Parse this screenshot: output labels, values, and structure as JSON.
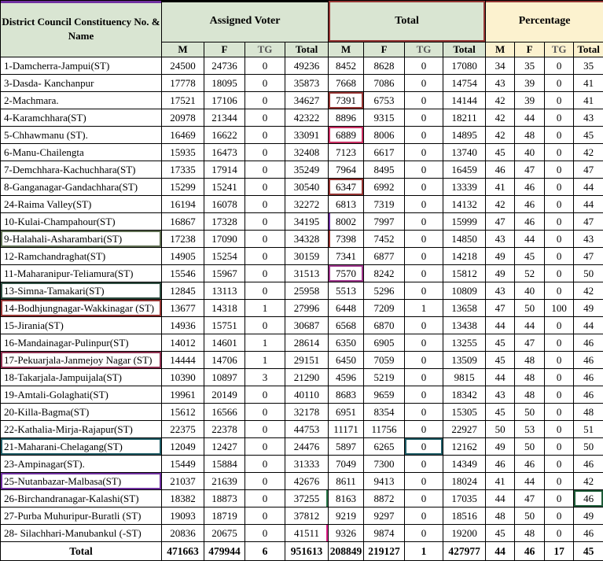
{
  "colors": {
    "header_green": "#d9e5d2",
    "header_cream": "#fcf2cf",
    "accent_dark_red": "#963634",
    "accent_purple": "#7030a0",
    "grid": "#000000"
  },
  "chart_data": {
    "type": "table",
    "name_header": "District Council Constituency No. & Name",
    "groups": [
      {
        "label": "Assigned Voter"
      },
      {
        "label": "Total"
      },
      {
        "label": "Percentage"
      }
    ],
    "sub_headers": [
      "M",
      "F",
      "TG",
      "Total"
    ],
    "total_label": "Total",
    "rows": [
      {
        "name": "1-Damcherra-Jampui(ST)",
        "values": [
          24500,
          24736,
          0,
          49236,
          8452,
          8628,
          0,
          17080,
          34,
          35,
          0,
          35
        ]
      },
      {
        "name": "3-Dasda- Kanchanpur",
        "values": [
          17778,
          18095,
          0,
          35873,
          7668,
          7086,
          0,
          14754,
          43,
          39,
          0,
          41
        ]
      },
      {
        "name": "2-Machmara.",
        "values": [
          17521,
          17106,
          0,
          34627,
          7391,
          6753,
          0,
          14144,
          42,
          39,
          0,
          41
        ]
      },
      {
        "name": "4-Karamchhara(ST)",
        "values": [
          20978,
          21344,
          0,
          42322,
          8896,
          9315,
          0,
          18211,
          42,
          44,
          0,
          43
        ]
      },
      {
        "name": "5-Chhawmanu (ST).",
        "values": [
          16469,
          16622,
          0,
          33091,
          6889,
          8006,
          0,
          14895,
          42,
          48,
          0,
          45
        ]
      },
      {
        "name": "6-Manu-Chailengta",
        "values": [
          15935,
          16473,
          0,
          32408,
          7123,
          6617,
          0,
          13740,
          45,
          40,
          0,
          42
        ]
      },
      {
        "name": "7-Demchhara-Kachuchhara(ST)",
        "values": [
          17335,
          17914,
          0,
          35249,
          7964,
          8495,
          0,
          16459,
          46,
          47,
          0,
          47
        ]
      },
      {
        "name": "8-Ganganagar-Gandachhara(ST)",
        "values": [
          15299,
          15241,
          0,
          30540,
          6347,
          6992,
          0,
          13339,
          41,
          46,
          0,
          44
        ]
      },
      {
        "name": "24-Raima Valley(ST)",
        "values": [
          16194,
          16078,
          0,
          32272,
          6813,
          7319,
          0,
          14132,
          42,
          46,
          0,
          44
        ]
      },
      {
        "name": "10-Kulai-Champahour(ST)",
        "values": [
          16867,
          17328,
          0,
          34195,
          8002,
          7997,
          0,
          15999,
          47,
          46,
          0,
          47
        ]
      },
      {
        "name": "9-Halahali-Asharambari(ST)",
        "values": [
          17238,
          17090,
          0,
          34328,
          7398,
          7452,
          0,
          14850,
          43,
          44,
          0,
          43
        ]
      },
      {
        "name": "12-Ramchandraghat(ST)",
        "values": [
          14905,
          15254,
          0,
          30159,
          7341,
          6877,
          0,
          14218,
          49,
          45,
          0,
          47
        ]
      },
      {
        "name": "11-Maharanipur-Teliamura(ST)",
        "values": [
          15546,
          15967,
          0,
          31513,
          7570,
          8242,
          0,
          15812,
          49,
          52,
          0,
          50
        ]
      },
      {
        "name": "13-Simna-Tamakari(ST)",
        "values": [
          12845,
          13113,
          0,
          25958,
          5513,
          5296,
          0,
          10809,
          43,
          40,
          0,
          42
        ]
      },
      {
        "name": "14-Bodhjungnagar-Wakkinagar (ST)",
        "values": [
          13677,
          14318,
          1,
          27996,
          6448,
          7209,
          1,
          13658,
          47,
          50,
          100,
          49
        ]
      },
      {
        "name": "15-Jirania(ST)",
        "values": [
          14936,
          15751,
          0,
          30687,
          6568,
          6870,
          0,
          13438,
          44,
          44,
          0,
          44
        ]
      },
      {
        "name": "16-Mandainagar-Pulinpur(ST)",
        "values": [
          14012,
          14601,
          1,
          28614,
          6350,
          6905,
          0,
          13255,
          45,
          47,
          0,
          46
        ]
      },
      {
        "name": "17-Pekuarjala-Janmejoy Nagar (ST)",
        "values": [
          14444,
          14706,
          1,
          29151,
          6450,
          7059,
          0,
          13509,
          45,
          48,
          0,
          46
        ]
      },
      {
        "name": "18-Takarjala-Jampuijala(ST)",
        "values": [
          10390,
          10897,
          3,
          21290,
          4596,
          5219,
          0,
          9815,
          44,
          48,
          0,
          46
        ]
      },
      {
        "name": "19-Amtali-Golaghati(ST)",
        "values": [
          19961,
          20149,
          0,
          40110,
          8683,
          9659,
          0,
          18342,
          43,
          48,
          0,
          46
        ]
      },
      {
        "name": "20-Killa-Bagma(ST)",
        "values": [
          15612,
          16566,
          0,
          32178,
          6951,
          8354,
          0,
          15305,
          45,
          50,
          0,
          48
        ]
      },
      {
        "name": "22-Kathalia-Mirja-Rajapur(ST)",
        "values": [
          22375,
          22378,
          0,
          44753,
          11171,
          11756,
          0,
          22927,
          50,
          53,
          0,
          51
        ]
      },
      {
        "name": "21-Maharani-Chelagang(ST)",
        "values": [
          12049,
          12427,
          0,
          24476,
          5897,
          6265,
          0,
          12162,
          49,
          50,
          0,
          50
        ]
      },
      {
        "name": "23-Ampinagar(ST).",
        "values": [
          15449,
          15884,
          0,
          31333,
          7049,
          7300,
          0,
          14349,
          46,
          46,
          0,
          46
        ]
      },
      {
        "name": "25-Nutanbazar-Malbasa(ST)",
        "values": [
          21037,
          21639,
          0,
          42676,
          8611,
          9413,
          0,
          18024,
          41,
          44,
          0,
          42
        ]
      },
      {
        "name": "26-Birchandranagar-Kalashi(ST)",
        "values": [
          18382,
          18873,
          0,
          37255,
          8163,
          8872,
          0,
          17035,
          44,
          47,
          0,
          46
        ]
      },
      {
        "name": "27-Purba Muhuripur-Buratli (ST)",
        "values": [
          19093,
          18719,
          0,
          37812,
          9219,
          9297,
          0,
          18516,
          48,
          50,
          0,
          49
        ]
      },
      {
        "name": "28- Silachhari-Manubankul (-ST)",
        "values": [
          20836,
          20675,
          0,
          41511,
          9326,
          9874,
          0,
          19200,
          45,
          48,
          0,
          46
        ]
      }
    ],
    "totals": [
      471663,
      479944,
      6,
      951613,
      208849,
      219127,
      1,
      427977,
      44,
      46,
      17,
      45
    ],
    "highlights": [
      {
        "row": 2,
        "col": 5,
        "sides": "all",
        "color": "#963634"
      },
      {
        "row": 4,
        "col": 5,
        "sides": "all",
        "color": "#cc3366"
      },
      {
        "row": 7,
        "col": 5,
        "sides": "all",
        "color": "#963634"
      },
      {
        "row": 9,
        "col": 5,
        "sides": "left",
        "color": "#7030a0"
      },
      {
        "row": 10,
        "col": 0,
        "sides": "all",
        "color": "#5f6f52"
      },
      {
        "row": 10,
        "col": 5,
        "sides": "left",
        "color": "#963634"
      },
      {
        "row": 12,
        "col": 5,
        "sides": "all",
        "color": "#a0398e"
      },
      {
        "row": 13,
        "col": 0,
        "sides": "all",
        "color": "#2e4d40"
      },
      {
        "row": 14,
        "col": 0,
        "sides": "all",
        "color": "#963634"
      },
      {
        "row": 17,
        "col": 0,
        "sides": "all",
        "color": "#8e3050"
      },
      {
        "row": 22,
        "col": 0,
        "sides": "all",
        "color": "#1f5c66"
      },
      {
        "row": 22,
        "col": 7,
        "sides": "all",
        "color": "#1f5c66"
      },
      {
        "row": 24,
        "col": 0,
        "sides": "all",
        "color": "#7030a0"
      },
      {
        "row": 25,
        "col": 4,
        "sides": "right",
        "color": "#2e7d4f"
      },
      {
        "row": 25,
        "col": 12,
        "sides": "all",
        "color": "#1e5c38"
      },
      {
        "row": 27,
        "col": 4,
        "sides": "right",
        "color": "#e0218a"
      }
    ]
  }
}
